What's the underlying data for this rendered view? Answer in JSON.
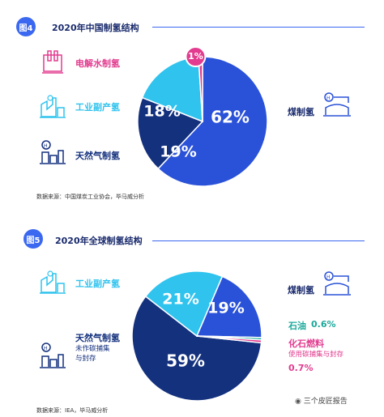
{
  "colors": {
    "coal": "#2a52d8",
    "byproduct": "#2fc3ee",
    "natgas": "#14317e",
    "electrolysis": "#e23b8f",
    "oil": "#1aa89a",
    "fossil_ccs": "#e23b8f",
    "navy": "#1a2b6d",
    "accent": "#3b68f0"
  },
  "figures": [
    {
      "badge": "图4",
      "title": "2020年中国制氢结构",
      "source": "数据来源：中国煤炭工业协会，毕马威分析",
      "labels": {
        "electrolysis": "电解水制氢",
        "byproduct": "工业副产氢",
        "natgas": "天然气制氢",
        "coal": "煤制氢"
      }
    },
    {
      "badge": "图5",
      "title": "2020年全球制氢结构",
      "source": "数据来源：IEA，毕马威分析",
      "labels": {
        "byproduct": "工业副产氢",
        "natgas": "天然气制氢",
        "natgas_sub1": "未作碳捕集",
        "natgas_sub2": "与封存",
        "coal": "煤制氢",
        "oil": "石油",
        "oil_value": "0.6%",
        "fossil": "化石燃料",
        "fossil_sub": "使用碳捕集与封存",
        "fossil_value": "0.7%"
      }
    }
  ],
  "watermark": "三个皮匠报告",
  "chart_data": [
    {
      "type": "pie",
      "title": "2020年中国制氢结构",
      "slices": [
        {
          "label": "煤制氢",
          "value": 62,
          "display": "62%"
        },
        {
          "label": "天然气制氢",
          "value": 19,
          "display": "19%"
        },
        {
          "label": "工业副产氢",
          "value": 18,
          "display": "18%"
        },
        {
          "label": "电解水制氢",
          "value": 1,
          "display": "1%"
        }
      ]
    },
    {
      "type": "pie",
      "title": "2020年全球制氢结构",
      "slices": [
        {
          "label": "天然气制氢（未作碳捕集与封存）",
          "value": 59,
          "display": "59%"
        },
        {
          "label": "工业副产氢",
          "value": 21,
          "display": "21%"
        },
        {
          "label": "煤制氢",
          "value": 19,
          "display": "19%"
        },
        {
          "label": "石油",
          "value": 0.6,
          "display": "0.6%"
        },
        {
          "label": "化石燃料（使用碳捕集与封存）",
          "value": 0.7,
          "display": "0.7%"
        }
      ]
    }
  ]
}
